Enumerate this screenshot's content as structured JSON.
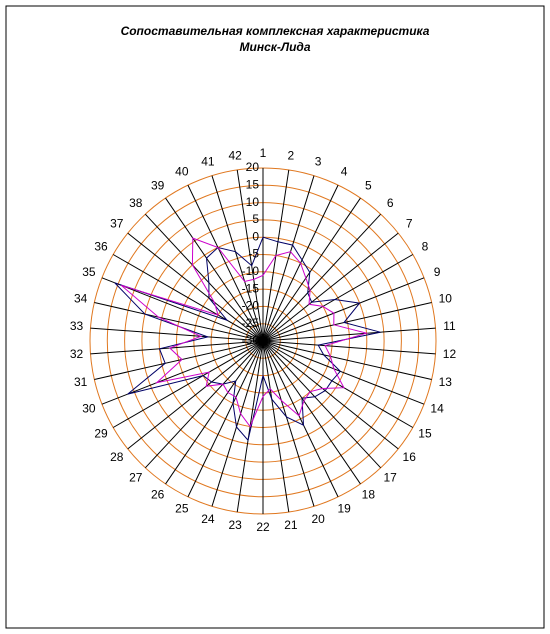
{
  "chart_data": {
    "type": "radar",
    "title": "Сопоставительная комплексная характеристика",
    "subtitle": "Минск-Лида",
    "categories": [
      "1",
      "2",
      "3",
      "4",
      "5",
      "6",
      "7",
      "8",
      "9",
      "10",
      "11",
      "12",
      "13",
      "14",
      "15",
      "16",
      "17",
      "18",
      "19",
      "20",
      "21",
      "22",
      "23",
      "24",
      "25",
      "26",
      "27",
      "28",
      "29",
      "30",
      "31",
      "32",
      "33",
      "34",
      "35",
      "36",
      "37",
      "38",
      "39",
      "40",
      "41",
      "42"
    ],
    "series": [
      {
        "color": "#000066",
        "values": [
          0,
          -1,
          -1,
          -4,
          -6,
          -11,
          -12,
          -6,
          0,
          -6,
          4,
          -14,
          -12,
          -6,
          -7,
          -7,
          -8,
          -10,
          -3,
          -7,
          -13,
          -20,
          -1,
          -4,
          -10,
          -16,
          -13,
          -11,
          -10,
          12,
          -1,
          0,
          -14,
          5,
          16,
          -18,
          -10,
          -7,
          -1,
          0,
          -3,
          -8
        ]
      },
      {
        "color": "#cc00cc",
        "values": [
          -11,
          -5,
          -3,
          -5,
          -8,
          -10,
          -13,
          -10,
          -8,
          -9,
          0,
          -12,
          -10,
          -8,
          -3,
          -8,
          -10,
          -9,
          -6,
          -12,
          -16,
          -14,
          -5,
          -8,
          -12,
          -12,
          -13,
          -9,
          -12,
          3,
          -6,
          -3,
          -12,
          1,
          14,
          -15,
          -12,
          0,
          6,
          0,
          -12,
          -12
        ]
      }
    ],
    "ylim": [
      -30,
      20
    ],
    "yticks": [
      -30,
      -25,
      -20,
      -15,
      -10,
      -5,
      0,
      5,
      10,
      15,
      20
    ],
    "grid": true,
    "grid_color": "#e07820",
    "spoke_color": "#000000"
  }
}
